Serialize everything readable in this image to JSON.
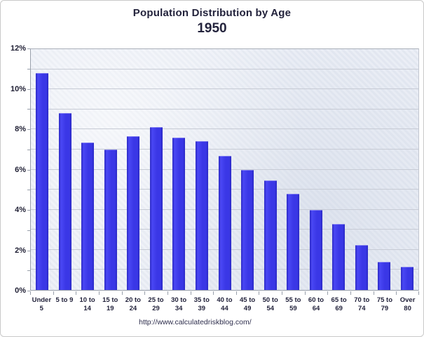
{
  "chart_data": {
    "type": "bar",
    "title": "Population Distribution by Age",
    "subtitle": "1950",
    "categories": [
      "Under 5",
      "5 to 9",
      "10 to 14",
      "15 to 19",
      "20 to 24",
      "25 to 29",
      "30 to 34",
      "35 to 39",
      "40 to 44",
      "45 to 49",
      "50 to 54",
      "55 to 59",
      "60 to 64",
      "65 to 69",
      "70 to 74",
      "75 to 79",
      "Over 80"
    ],
    "category_label_lines": [
      [
        "Under",
        "5"
      ],
      [
        "5 to 9"
      ],
      [
        "10 to",
        "14"
      ],
      [
        "15 to",
        "19"
      ],
      [
        "20 to",
        "24"
      ],
      [
        "25 to",
        "29"
      ],
      [
        "30 to",
        "34"
      ],
      [
        "35 to",
        "39"
      ],
      [
        "40 to",
        "44"
      ],
      [
        "45 to",
        "49"
      ],
      [
        "50 to",
        "54"
      ],
      [
        "55 to",
        "59"
      ],
      [
        "60 to",
        "64"
      ],
      [
        "65 to",
        "69"
      ],
      [
        "70 to",
        "74"
      ],
      [
        "75 to",
        "79"
      ],
      [
        "Over",
        "80"
      ]
    ],
    "values": [
      10.8,
      8.8,
      7.35,
      7.0,
      7.65,
      8.1,
      7.6,
      7.4,
      6.7,
      6.0,
      5.45,
      4.8,
      4.0,
      3.3,
      2.25,
      1.4,
      1.15
    ],
    "value_unit": "%",
    "ylim": [
      0,
      12
    ],
    "y_tick_labels": [
      "0%",
      "2%",
      "4%",
      "6%",
      "8%",
      "10%",
      "12%"
    ],
    "y_label_step": 2,
    "y_gridline_step": 1,
    "grid": "horizontal",
    "legend": "none",
    "footer_url": "http://www.calculatedriskblog.com/",
    "colors": {
      "bar": "#3a37e6",
      "plot_background": "#e9edf5",
      "gridline": "#c7cbd5",
      "text": "#23233c"
    }
  }
}
